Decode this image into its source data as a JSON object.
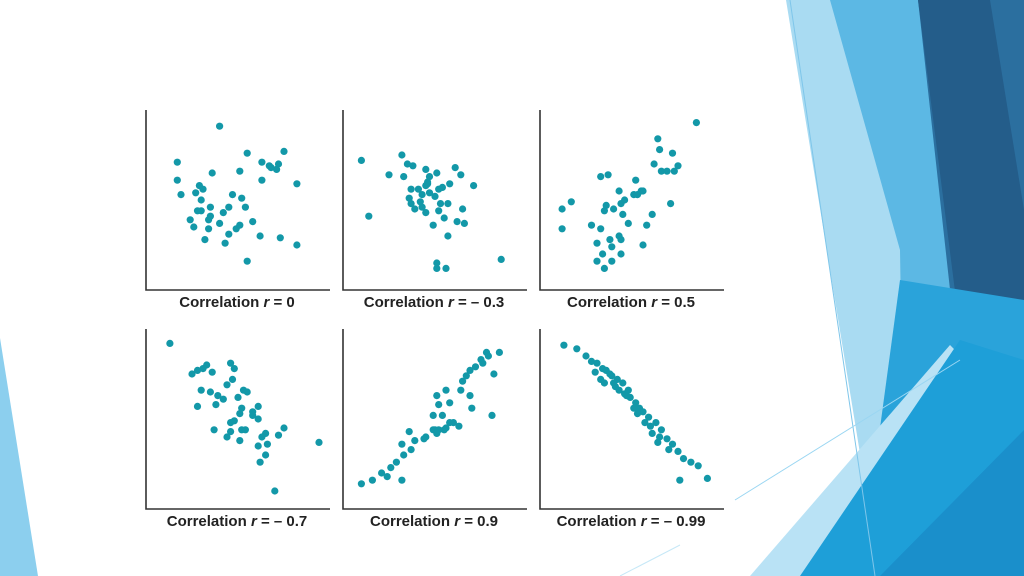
{
  "slide": {
    "accent_colors": [
      "#1f5f8b",
      "#2b78b0",
      "#5db9e6",
      "#9ad6f2",
      "#1ea6dc"
    ],
    "marker_color": "#1398a8",
    "axis_color": "#333333"
  },
  "chart_data": [
    {
      "type": "scatter",
      "label_prefix": "Correlation ",
      "label_var": "r",
      "label_suffix": " = 0",
      "xlim": [
        0,
        10
      ],
      "ylim": [
        0,
        10
      ],
      "grid": false,
      "x": [
        4.0,
        1.7,
        1.7,
        1.9,
        3.0,
        3.6,
        5.1,
        5.5,
        7.5,
        6.8,
        7.1,
        8.2,
        2.9,
        2.7,
        3.1,
        3.0,
        3.5,
        4.5,
        4.7,
        5.2,
        5.4,
        6.3,
        6.3,
        7.2,
        6.7,
        2.8,
        3.5,
        4.2,
        2.4,
        2.6,
        3.4,
        3.4,
        4.0,
        4.9,
        5.1,
        3.2,
        4.3,
        4.5,
        6.2,
        5.8,
        7.3,
        5.5,
        8.2
      ],
      "y": [
        9.1,
        7.1,
        6.1,
        5.3,
        4.4,
        6.5,
        6.6,
        7.6,
        7.7,
        6.8,
        6.7,
        5.9,
        5.8,
        5.4,
        5.6,
        5.0,
        4.6,
        4.6,
        5.3,
        5.1,
        4.6,
        6.1,
        7.1,
        7.0,
        6.9,
        4.4,
        4.1,
        4.3,
        3.9,
        3.5,
        3.4,
        3.9,
        3.7,
        3.4,
        3.6,
        2.8,
        2.6,
        3.1,
        3.0,
        3.8,
        2.9,
        1.6,
        2.5
      ]
    },
    {
      "type": "scatter",
      "label_prefix": "Correlation ",
      "label_var": "r",
      "label_suffix": " = – 0.3",
      "xlim": [
        0,
        10
      ],
      "ylim": [
        0,
        10
      ],
      "grid": false,
      "x": [
        1.0,
        3.2,
        3.3,
        3.5,
        3.8,
        4.5,
        4.7,
        3.7,
        4.1,
        4.3,
        4.6,
        4.6,
        5.1,
        5.4,
        6.1,
        6.4,
        7.1,
        2.5,
        3.6,
        4.2,
        4.5,
        4.7,
        5.0,
        5.3,
        5.2,
        5.7,
        5.8,
        6.5,
        6.6,
        3.7,
        3.9,
        4.3,
        4.5,
        5.2,
        5.5,
        4.9,
        6.2,
        1.4,
        5.7,
        5.1,
        5.1,
        5.6,
        8.6
      ],
      "y": [
        7.2,
        7.5,
        6.3,
        7.0,
        6.9,
        6.7,
        6.3,
        5.6,
        5.6,
        5.3,
        5.9,
        6.0,
        6.5,
        5.7,
        6.8,
        6.4,
        5.8,
        6.4,
        5.1,
        4.9,
        5.8,
        5.4,
        5.2,
        4.8,
        5.6,
        4.8,
        5.9,
        4.5,
        3.7,
        4.8,
        4.5,
        4.6,
        4.3,
        4.4,
        4.0,
        3.6,
        3.8,
        4.1,
        3.0,
        1.5,
        1.2,
        1.2,
        1.7
      ]
    },
    {
      "type": "scatter",
      "label_prefix": "Correlation ",
      "label_var": "r",
      "label_suffix": " = 0.5",
      "xlim": [
        0,
        10
      ],
      "ylim": [
        0,
        10
      ],
      "grid": false,
      "x": [
        8.5,
        6.4,
        7.2,
        6.2,
        6.6,
        6.9,
        5.2,
        5.5,
        7.5,
        7.3,
        3.3,
        3.7,
        4.3,
        5.6,
        5.1,
        7.1,
        5.3,
        4.6,
        4.4,
        4.0,
        3.5,
        3.6,
        1.7,
        1.2,
        4.5,
        4.8,
        5.8,
        6.1,
        2.8,
        3.3,
        4.3,
        3.8,
        3.9,
        4.4,
        5.6,
        4.4,
        1.2,
        3.1,
        3.1,
        3.9,
        3.5,
        3.4,
        6.5
      ],
      "y": [
        9.3,
        8.4,
        7.6,
        7.0,
        6.6,
        6.6,
        6.1,
        5.5,
        6.9,
        6.6,
        6.3,
        6.4,
        5.5,
        5.5,
        5.3,
        4.8,
        5.3,
        5.0,
        4.8,
        4.5,
        4.4,
        4.7,
        4.9,
        4.5,
        4.2,
        3.7,
        3.6,
        4.2,
        3.6,
        3.4,
        3.0,
        2.8,
        2.4,
        2.0,
        2.5,
        2.8,
        3.4,
        2.6,
        1.6,
        1.6,
        1.2,
        2.0,
        7.8
      ]
    },
    {
      "type": "scatter",
      "label_prefix": "Correlation ",
      "label_var": "r",
      "label_suffix": " = – 0.7",
      "xlim": [
        0,
        10
      ],
      "ylim": [
        0,
        10
      ],
      "grid": false,
      "x": [
        1.3,
        2.5,
        2.8,
        3.1,
        3.3,
        3.6,
        4.6,
        4.8,
        4.7,
        3.0,
        3.5,
        3.9,
        4.4,
        5.3,
        5.5,
        2.8,
        3.8,
        4.2,
        5.0,
        5.2,
        6.1,
        6.1,
        5.1,
        5.8,
        4.6,
        4.8,
        5.8,
        7.5,
        7.2,
        6.5,
        6.3,
        5.2,
        5.4,
        6.6,
        4.6,
        3.7,
        6.5,
        6.2,
        6.1,
        4.4,
        9.4,
        5.1,
        7.0
      ],
      "y": [
        9.2,
        7.5,
        7.7,
        7.8,
        8.0,
        7.6,
        8.1,
        7.8,
        7.2,
        6.6,
        6.5,
        6.3,
        6.9,
        6.6,
        6.5,
        5.7,
        5.8,
        6.1,
        6.2,
        5.6,
        5.7,
        5.0,
        5.3,
        5.4,
        4.8,
        4.9,
        5.2,
        4.5,
        4.1,
        4.2,
        4.0,
        4.4,
        4.4,
        3.6,
        4.3,
        4.4,
        3.0,
        2.6,
        3.5,
        4.0,
        3.7,
        3.8,
        1.0
      ]
    },
    {
      "type": "scatter",
      "label_prefix": "Correlation ",
      "label_var": "r",
      "label_suffix": " = 0.9",
      "xlim": [
        0,
        10
      ],
      "ylim": [
        0,
        10
      ],
      "grid": false,
      "x": [
        7.8,
        8.5,
        7.9,
        7.5,
        6.9,
        7.2,
        6.7,
        6.5,
        7.6,
        8.2,
        5.6,
        5.1,
        6.4,
        6.9,
        5.2,
        5.8,
        7.0,
        8.1,
        4.9,
        5.4,
        6.0,
        6.3,
        5.6,
        4.5,
        5.0,
        3.6,
        3.2,
        5.8,
        5.5,
        5.2,
        4.9,
        5.1,
        4.4,
        3.7,
        3.9,
        3.3,
        2.9,
        2.6,
        2.1,
        2.4,
        1.6,
        3.2,
        1.0
      ],
      "y": [
        8.7,
        8.7,
        8.5,
        8.3,
        7.7,
        7.9,
        7.4,
        7.1,
        8.1,
        7.5,
        6.6,
        6.3,
        6.6,
        6.3,
        5.8,
        5.9,
        5.6,
        5.2,
        5.2,
        5.2,
        4.8,
        4.6,
        4.5,
        4.0,
        4.4,
        4.3,
        3.6,
        4.8,
        4.4,
        4.4,
        4.4,
        4.2,
        3.9,
        3.3,
        3.8,
        3.0,
        2.6,
        2.3,
        2.0,
        1.8,
        1.6,
        1.6,
        1.4
      ]
    },
    {
      "type": "scatter",
      "label_prefix": "Correlation ",
      "label_var": "r",
      "label_suffix": " = – 0.99",
      "xlim": [
        0,
        10
      ],
      "ylim": [
        0,
        10
      ],
      "grid": false,
      "x": [
        1.3,
        2.0,
        2.5,
        2.8,
        3.1,
        3.4,
        3.6,
        3.9,
        4.2,
        4.5,
        3.0,
        3.3,
        3.8,
        4.0,
        4.1,
        3.5,
        4.3,
        4.6,
        4.9,
        4.8,
        5.2,
        5.4,
        4.7,
        5.1,
        5.6,
        5.9,
        5.3,
        5.7,
        6.0,
        6.3,
        6.6,
        6.1,
        6.5,
        6.9,
        7.2,
        6.4,
        7.0,
        7.5,
        7.8,
        8.2,
        8.6,
        9.1,
        7.6
      ],
      "y": [
        9.1,
        8.9,
        8.5,
        8.2,
        8.1,
        7.8,
        7.7,
        7.4,
        7.2,
        7.0,
        7.6,
        7.2,
        7.5,
        7.0,
        6.8,
        7.0,
        6.6,
        6.4,
        6.2,
        6.6,
        5.9,
        5.6,
        6.3,
        5.6,
        5.4,
        5.1,
        5.3,
        4.8,
        4.6,
        4.8,
        4.4,
        4.2,
        4.0,
        3.9,
        3.6,
        3.7,
        3.3,
        3.2,
        2.8,
        2.6,
        2.4,
        1.7,
        1.6
      ]
    }
  ]
}
